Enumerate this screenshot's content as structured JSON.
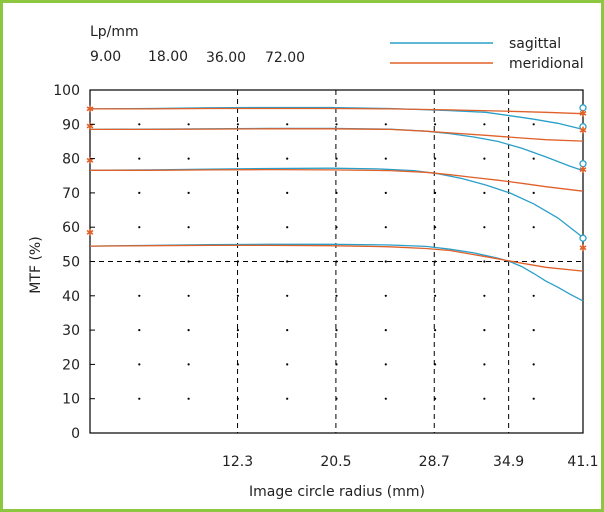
{
  "chart_data": {
    "type": "line",
    "header_label": "Lp/mm",
    "frequencies": [
      "9.00",
      "18.00",
      "36.00",
      "72.00"
    ],
    "legend": [
      {
        "name": "sagittal",
        "color": "#2a9fc9"
      },
      {
        "name": "meridional",
        "color": "#e0602a"
      }
    ],
    "xlabel": "Image circle radius (mm)",
    "ylabel": "MTF (%)",
    "xlim": [
      0,
      41.1
    ],
    "ylim": [
      0,
      100
    ],
    "x_ticks": [
      "12.3",
      "20.5",
      "28.7",
      "34.9",
      "41.1"
    ],
    "y_ticks": [
      "0",
      "10",
      "20",
      "30",
      "40",
      "50",
      "60",
      "70",
      "80",
      "90",
      "100"
    ],
    "reference_lines": {
      "x": [
        12.3,
        20.5,
        28.7,
        34.9
      ],
      "y": [
        50
      ]
    },
    "series": [
      {
        "name": "sagittal",
        "frequency": "9.00",
        "points": [
          [
            0,
            94.5
          ],
          [
            5,
            94.6
          ],
          [
            10,
            94.8
          ],
          [
            15,
            94.9
          ],
          [
            20,
            94.9
          ],
          [
            25,
            94.6
          ],
          [
            30,
            94.0
          ],
          [
            33,
            93.5
          ],
          [
            35,
            92.5
          ],
          [
            37,
            91.5
          ],
          [
            39,
            90.3
          ],
          [
            41.1,
            88.5
          ]
        ]
      },
      {
        "name": "meridional",
        "frequency": "9.00",
        "points": [
          [
            0,
            94.5
          ],
          [
            5,
            94.5
          ],
          [
            10,
            94.6
          ],
          [
            15,
            94.6
          ],
          [
            20,
            94.6
          ],
          [
            25,
            94.5
          ],
          [
            30,
            94.2
          ],
          [
            35,
            93.8
          ],
          [
            38,
            93.5
          ],
          [
            41.1,
            93.1
          ]
        ]
      },
      {
        "name": "sagittal",
        "frequency": "18.00",
        "points": [
          [
            0,
            88.5
          ],
          [
            5,
            88.6
          ],
          [
            10,
            88.7
          ],
          [
            15,
            88.8
          ],
          [
            20,
            88.8
          ],
          [
            25,
            88.6
          ],
          [
            28,
            88.0
          ],
          [
            30,
            87.3
          ],
          [
            32,
            86.3
          ],
          [
            34,
            85.0
          ],
          [
            36,
            83.0
          ],
          [
            38,
            80.5
          ],
          [
            40,
            77.8
          ],
          [
            41.1,
            76.5
          ]
        ]
      },
      {
        "name": "meridional",
        "frequency": "18.00",
        "points": [
          [
            0,
            88.5
          ],
          [
            5,
            88.5
          ],
          [
            10,
            88.6
          ],
          [
            15,
            88.7
          ],
          [
            20,
            88.7
          ],
          [
            25,
            88.5
          ],
          [
            28,
            88.0
          ],
          [
            30,
            87.5
          ],
          [
            33,
            86.8
          ],
          [
            36,
            86.0
          ],
          [
            38,
            85.5
          ],
          [
            41.1,
            85.1
          ]
        ]
      },
      {
        "name": "sagittal",
        "frequency": "36.00",
        "points": [
          [
            0,
            76.6
          ],
          [
            5,
            76.7
          ],
          [
            10,
            76.9
          ],
          [
            15,
            77.1
          ],
          [
            20,
            77.2
          ],
          [
            24,
            77.0
          ],
          [
            27,
            76.5
          ],
          [
            29,
            75.6
          ],
          [
            31,
            74.2
          ],
          [
            33,
            72.3
          ],
          [
            35,
            70.0
          ],
          [
            37,
            66.8
          ],
          [
            39,
            62.7
          ],
          [
            41.1,
            57.0
          ]
        ]
      },
      {
        "name": "meridional",
        "frequency": "36.00",
        "points": [
          [
            0,
            76.6
          ],
          [
            5,
            76.6
          ],
          [
            10,
            76.7
          ],
          [
            15,
            76.8
          ],
          [
            20,
            76.7
          ],
          [
            25,
            76.5
          ],
          [
            28,
            76.0
          ],
          [
            30,
            75.3
          ],
          [
            32,
            74.5
          ],
          [
            34,
            73.7
          ],
          [
            36,
            72.8
          ],
          [
            38,
            71.8
          ],
          [
            41.1,
            70.5
          ]
        ]
      },
      {
        "name": "sagittal",
        "frequency": "72.00",
        "points": [
          [
            0,
            54.5
          ],
          [
            5,
            54.7
          ],
          [
            10,
            54.9
          ],
          [
            15,
            55.0
          ],
          [
            20,
            55.0
          ],
          [
            25,
            54.8
          ],
          [
            28,
            54.4
          ],
          [
            30,
            53.6
          ],
          [
            32,
            52.5
          ],
          [
            34,
            51.0
          ],
          [
            35,
            50.0
          ],
          [
            36,
            48.5
          ],
          [
            37,
            46.5
          ],
          [
            38,
            44.3
          ],
          [
            39,
            42.5
          ],
          [
            40,
            40.5
          ],
          [
            41.1,
            38.5
          ]
        ]
      },
      {
        "name": "meridional",
        "frequency": "72.00",
        "points": [
          [
            0,
            54.5
          ],
          [
            5,
            54.6
          ],
          [
            10,
            54.7
          ],
          [
            15,
            54.7
          ],
          [
            20,
            54.6
          ],
          [
            25,
            54.3
          ],
          [
            28,
            53.8
          ],
          [
            30,
            53.2
          ],
          [
            32,
            52.0
          ],
          [
            34,
            50.8
          ],
          [
            36,
            49.5
          ],
          [
            38,
            48.3
          ],
          [
            41.1,
            47.2
          ]
        ]
      }
    ],
    "left_markers": [
      {
        "marker": "star",
        "y": 94.5
      },
      {
        "marker": "star",
        "y": 89.5
      },
      {
        "marker": "star",
        "y": 79.5
      },
      {
        "marker": "star",
        "y": 58.5
      }
    ],
    "right_markers": [
      {
        "marker": "circle",
        "y": 94.8
      },
      {
        "marker": "star",
        "y": 93.2
      },
      {
        "marker": "circle",
        "y": 89.3
      },
      {
        "marker": "star",
        "y": 88.3
      },
      {
        "marker": "circle",
        "y": 78.5
      },
      {
        "marker": "star",
        "y": 76.8
      },
      {
        "marker": "circle",
        "y": 56.8
      },
      {
        "marker": "star",
        "y": 54.0
      }
    ],
    "grid_dots": true
  }
}
